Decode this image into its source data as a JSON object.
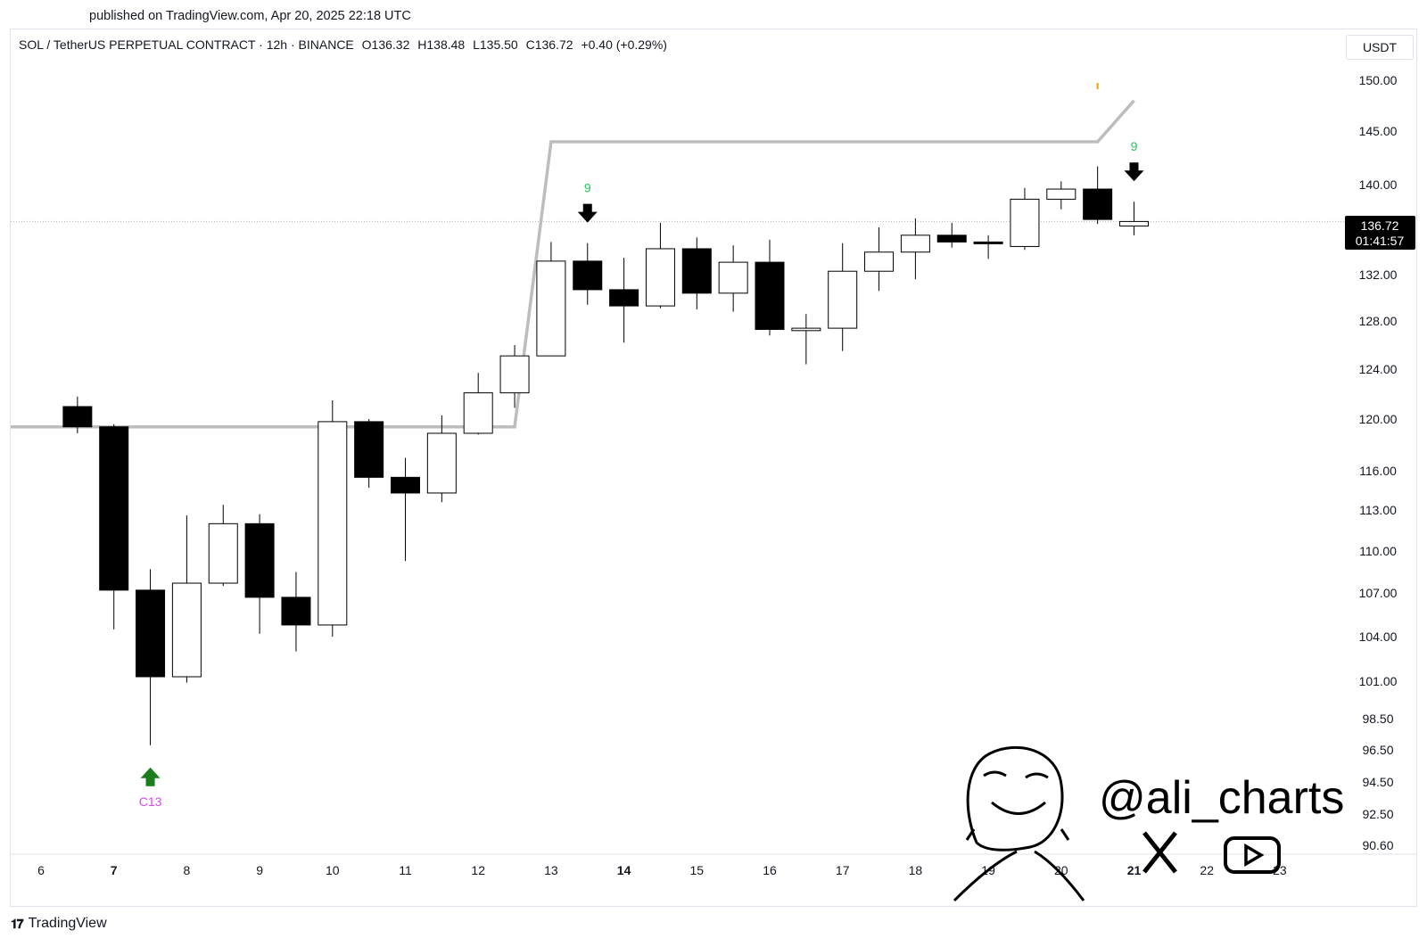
{
  "header": {
    "published": "published on TradingView.com, Apr 20, 2025 22:18 UTC"
  },
  "legend": {
    "symbol": "SOL / TetherUS PERPETUAL CONTRACT · 12h · BINANCE",
    "open": "O136.32",
    "high": "H138.48",
    "low": "L135.50",
    "close": "C136.72",
    "change": "+0.40 (+0.29%)"
  },
  "currency_button": "USDT",
  "last_price": {
    "price": "136.72",
    "countdown": "01:41:57"
  },
  "watermark": {
    "handle": "@ali_charts"
  },
  "footer": {
    "brand": "TradingView"
  },
  "colors": {
    "signal_green": "#22c55e",
    "arrow_green": "#1b7d1b",
    "c13_magenta": "#d946ef",
    "stop_line": "#bdbdbd",
    "info_orange": "#f59e0b"
  },
  "chart_data": {
    "type": "candlestick",
    "interval": "12h",
    "y_axis_labels": [
      "150.00",
      "145.00",
      "140.00",
      "132.00",
      "128.00",
      "124.00",
      "120.00",
      "116.00",
      "113.00",
      "110.00",
      "107.00",
      "104.00",
      "101.00",
      "98.50",
      "96.50",
      "94.50",
      "92.50",
      "90.60"
    ],
    "x_axis_labels": [
      {
        "label": "6",
        "bold": false
      },
      {
        "label": "7",
        "bold": true
      },
      {
        "label": "8",
        "bold": false
      },
      {
        "label": "9",
        "bold": false
      },
      {
        "label": "10",
        "bold": false
      },
      {
        "label": "11",
        "bold": false
      },
      {
        "label": "12",
        "bold": false
      },
      {
        "label": "13",
        "bold": false
      },
      {
        "label": "14",
        "bold": true
      },
      {
        "label": "15",
        "bold": false
      },
      {
        "label": "16",
        "bold": false
      },
      {
        "label": "17",
        "bold": false
      },
      {
        "label": "18",
        "bold": false
      },
      {
        "label": "19",
        "bold": false
      },
      {
        "label": "20",
        "bold": false
      },
      {
        "label": "21",
        "bold": true
      },
      {
        "label": "22",
        "bold": false
      },
      {
        "label": "23",
        "bold": false
      }
    ],
    "candles": [
      {
        "t": "6 12:00",
        "o": 121.0,
        "h": 121.8,
        "l": 118.9,
        "c": 119.4
      },
      {
        "t": "7 00:00",
        "o": 119.4,
        "h": 119.6,
        "l": 104.5,
        "c": 107.2
      },
      {
        "t": "7 12:00",
        "o": 107.2,
        "h": 108.7,
        "l": 96.8,
        "c": 101.3
      },
      {
        "t": "8 00:00",
        "o": 101.3,
        "h": 112.6,
        "l": 100.9,
        "c": 107.7
      },
      {
        "t": "8 12:00",
        "o": 107.7,
        "h": 113.4,
        "l": 107.5,
        "c": 112.0
      },
      {
        "t": "9 00:00",
        "o": 112.0,
        "h": 112.7,
        "l": 104.2,
        "c": 106.7
      },
      {
        "t": "9 12:00",
        "o": 106.7,
        "h": 108.5,
        "l": 103.0,
        "c": 104.8
      },
      {
        "t": "10 00:00",
        "o": 104.8,
        "h": 121.5,
        "l": 104.0,
        "c": 119.8
      },
      {
        "t": "10 12:00",
        "o": 119.8,
        "h": 120.0,
        "l": 114.7,
        "c": 115.5
      },
      {
        "t": "11 00:00",
        "o": 115.5,
        "h": 117.0,
        "l": 109.3,
        "c": 114.3
      },
      {
        "t": "11 12:00",
        "o": 114.3,
        "h": 120.3,
        "l": 113.6,
        "c": 118.9
      },
      {
        "t": "12 00:00",
        "o": 118.9,
        "h": 123.7,
        "l": 118.8,
        "c": 122.1
      },
      {
        "t": "12 12:00",
        "o": 122.1,
        "h": 126.0,
        "l": 120.9,
        "c": 125.1
      },
      {
        "t": "13 00:00",
        "o": 125.1,
        "h": 134.9,
        "l": 125.1,
        "c": 133.2
      },
      {
        "t": "13 12:00",
        "o": 133.2,
        "h": 134.8,
        "l": 129.4,
        "c": 130.7
      },
      {
        "t": "14 00:00",
        "o": 130.7,
        "h": 133.5,
        "l": 126.2,
        "c": 129.3
      },
      {
        "t": "14 12:00",
        "o": 129.3,
        "h": 136.6,
        "l": 129.1,
        "c": 134.3
      },
      {
        "t": "15 00:00",
        "o": 134.3,
        "h": 135.3,
        "l": 129.0,
        "c": 130.4
      },
      {
        "t": "15 12:00",
        "o": 130.4,
        "h": 134.6,
        "l": 128.8,
        "c": 133.1
      },
      {
        "t": "16 00:00",
        "o": 133.1,
        "h": 135.1,
        "l": 126.8,
        "c": 127.3
      },
      {
        "t": "16 12:00",
        "o": 127.2,
        "h": 128.6,
        "l": 124.4,
        "c": 127.4
      },
      {
        "t": "17 00:00",
        "o": 127.4,
        "h": 134.8,
        "l": 125.5,
        "c": 132.3
      },
      {
        "t": "17 12:00",
        "o": 132.3,
        "h": 136.2,
        "l": 130.6,
        "c": 134.0
      },
      {
        "t": "18 00:00",
        "o": 134.0,
        "h": 137.0,
        "l": 131.6,
        "c": 135.5
      },
      {
        "t": "18 12:00",
        "o": 135.5,
        "h": 136.6,
        "l": 134.4,
        "c": 134.9
      },
      {
        "t": "19 00:00",
        "o": 134.9,
        "h": 135.5,
        "l": 133.4,
        "c": 134.8
      },
      {
        "t": "19 12:00",
        "o": 134.5,
        "h": 139.7,
        "l": 134.2,
        "c": 138.7
      },
      {
        "t": "20 00:00",
        "o": 138.7,
        "h": 140.3,
        "l": 137.8,
        "c": 139.6
      },
      {
        "t": "20 12:00",
        "o": 139.6,
        "h": 141.7,
        "l": 136.5,
        "c": 136.9
      },
      {
        "t": "21 00:00",
        "o": 136.32,
        "h": 138.48,
        "l": 135.5,
        "c": 136.72
      }
    ],
    "stop_line": [
      {
        "t": "5 12:00",
        "v": 119.4
      },
      {
        "t": "12 12:00",
        "v": 119.4
      },
      {
        "t": "13 00:00",
        "v": 144.0
      },
      {
        "t": "20 12:00",
        "v": 144.0
      },
      {
        "t": "21 00:00",
        "v": 148.0
      }
    ],
    "signals": [
      {
        "t": "7 12:00",
        "label": "C13",
        "type": "buy",
        "value": 96.8
      },
      {
        "t": "13 12:00",
        "label": "9",
        "type": "sell",
        "value": 134.8
      },
      {
        "t": "21 00:00",
        "label": "9",
        "type": "sell",
        "value": 138.48
      }
    ],
    "last_price": 136.72,
    "grid": false
  }
}
